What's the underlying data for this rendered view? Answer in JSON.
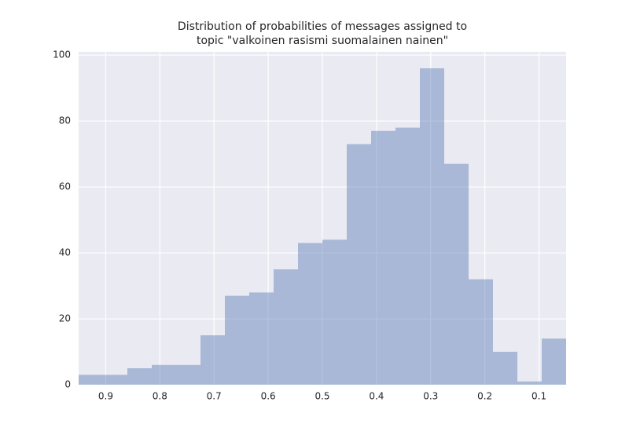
{
  "chart_data": {
    "type": "histogram",
    "title": [
      "Distribution of probabilities of messages assigned to",
      "topic \"valkoinen rasismi suomalainen nainen\""
    ],
    "bins": [
      0.95,
      0.905,
      0.86,
      0.815,
      0.77,
      0.725,
      0.68,
      0.635,
      0.59,
      0.545,
      0.5,
      0.455,
      0.41,
      0.365,
      0.32,
      0.275,
      0.23,
      0.185,
      0.14,
      0.095,
      0.05
    ],
    "values": [
      3,
      3,
      5,
      6,
      6,
      15,
      27,
      28,
      35,
      43,
      44,
      73,
      77,
      78,
      96,
      67,
      32,
      10,
      1,
      14
    ],
    "color": "#4c72b0",
    "xlim": [
      0.95,
      0.05
    ],
    "xticks": [
      0.9,
      0.8,
      0.7,
      0.6,
      0.5,
      0.4,
      0.3,
      0.2,
      0.1
    ],
    "ylim": [
      0,
      101
    ],
    "yticks": [
      0,
      20,
      40,
      60,
      80,
      100
    ],
    "grid": true
  }
}
